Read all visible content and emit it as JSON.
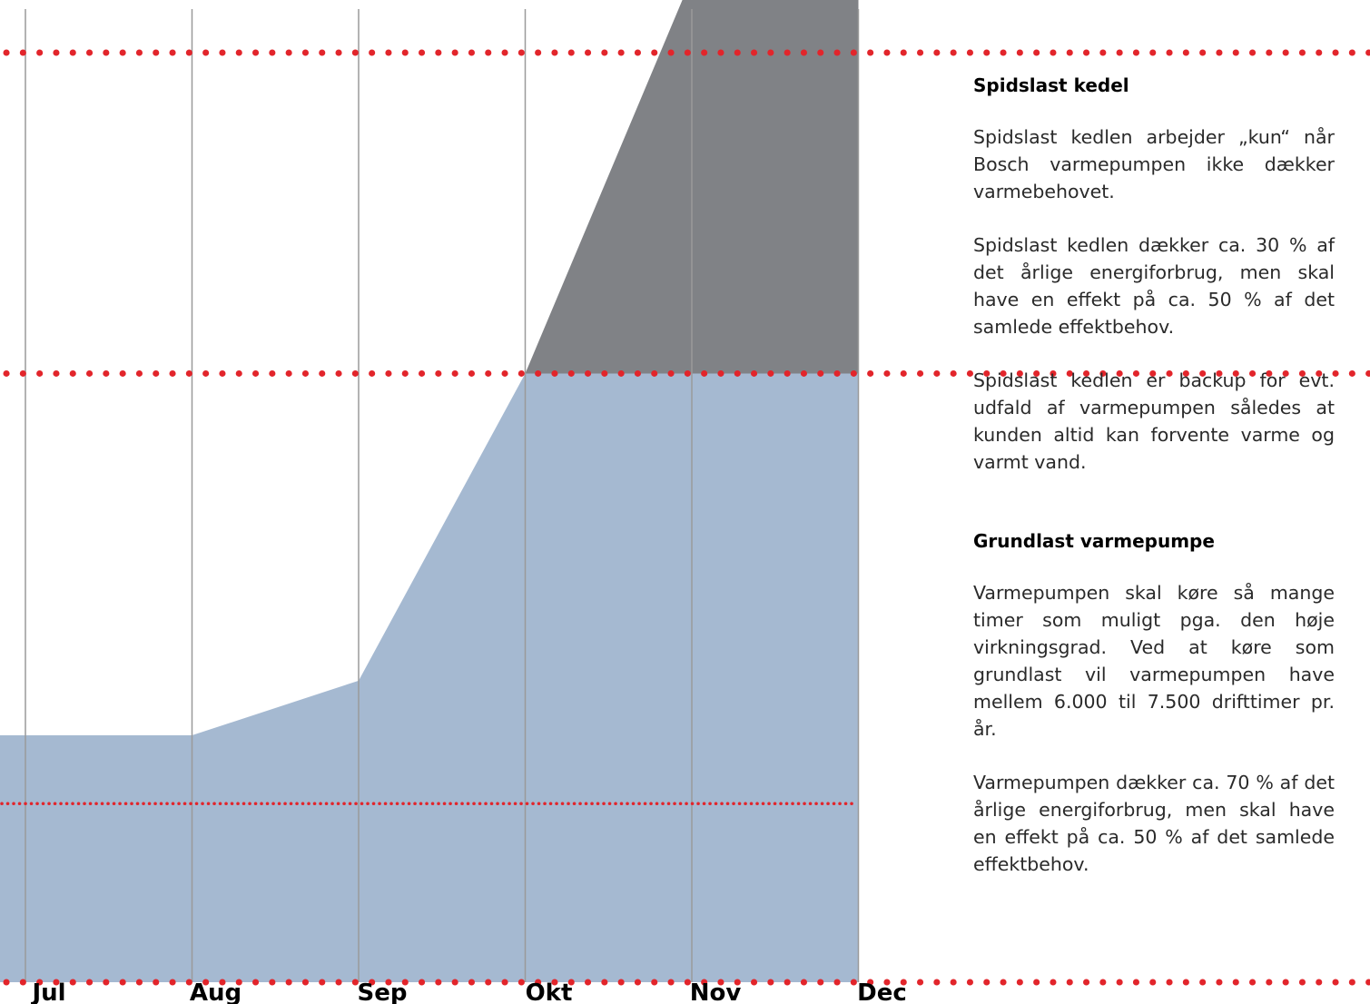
{
  "chart_data": {
    "type": "area",
    "x": [
      "Jul",
      "Aug",
      "Sep",
      "Okt",
      "Nov",
      "Dec"
    ],
    "series": [
      {
        "name": "Grundlast varmepumpe",
        "values": [
          0.0,
          0.0,
          0.08,
          0.53,
          0.53,
          0.53
        ]
      },
      {
        "name": "Spidslast kedel",
        "values": [
          0.0,
          0.0,
          0.0,
          0.0,
          0.58,
          0.94
        ]
      }
    ],
    "title": "",
    "xlabel": "",
    "ylabel": "",
    "ylim": [
      0,
      1
    ],
    "levels": [
      1.0,
      0.53,
      0.0
    ],
    "inner_level": -0.1,
    "grid": true,
    "legend": "none"
  },
  "colors": {
    "grundlast": "#a5b9d1",
    "spidslast": "#808286",
    "dotted_line": "#e2252b",
    "gridline": "#9a9a9a"
  },
  "sections": {
    "spidslast": {
      "title": "Spidslast kedel",
      "paragraphs": [
        "Spidslast kedlen arbejder „kun“ når Bosch varmepumpen ikke dækker varmebehovet.",
        "Spidslast kedlen dækker ca. 30 % af det årlige energiforbrug, men skal have en effekt på ca. 50 % af det samlede effektbehov.",
        "Spidslast kedlen er backup for evt. udfald af varmepumpen således at kunden altid kan forvente varme og varmt vand."
      ]
    },
    "grundlast": {
      "title": "Grundlast varmepumpe",
      "paragraphs": [
        "Varmepumpen skal køre så mange timer som muligt pga. den høje virkningsgrad. Ved at køre som grundlast vil varmepumpen have mellem 6.000 til 7.500 drifttimer pr. år.",
        "Varmepumpen dækker ca. 70 % af det årlige energiforbrug, men skal have en effekt på ca. 50 % af det samlede effektbehov."
      ]
    }
  }
}
